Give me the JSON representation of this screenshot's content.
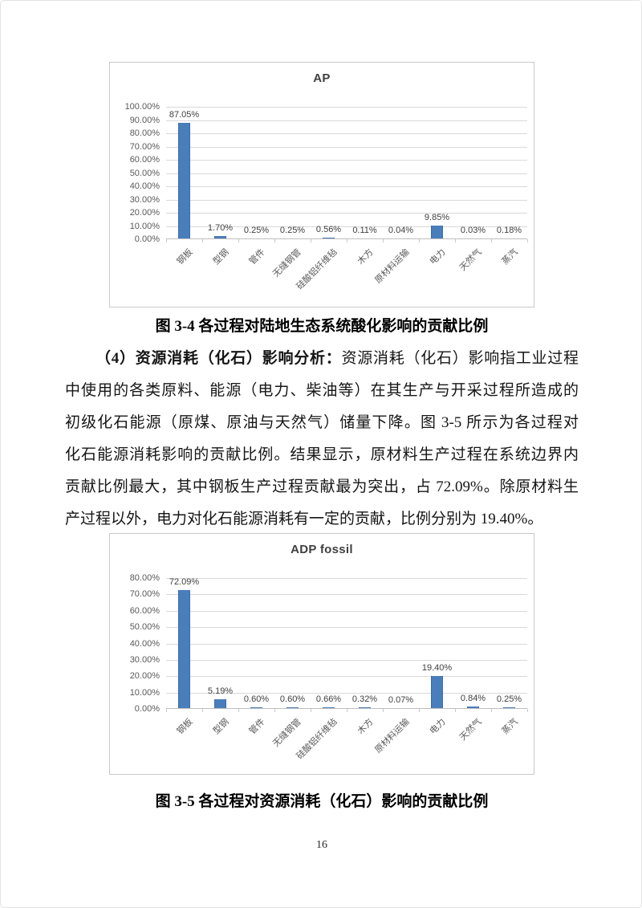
{
  "page": {
    "number": "16"
  },
  "captions": {
    "figure1": "图 3-4 各过程对陆地生态系统酸化影响的贡献比例",
    "figure2": "图 3-5 各过程对资源消耗（化石）影响的贡献比例"
  },
  "paragraph": {
    "bold_lead": "（4）资源消耗（化石）影响分析：",
    "line1_rest": "资源消耗（化石）影响指工业过程",
    "lines": [
      "中使用的各类原料、能源（电力、柴油等）在其生产与开采过程所造成的",
      "初级化石能源（原煤、原油与天然气）储量下降。图 3-5 所示为各过程对",
      "化石能源消耗影响的贡献比例。结果显示，原材料生产过程在系统边界内",
      "贡献比例最大，其中钢板生产过程贡献最为突出，占 72.09%。除原材料生",
      "产过程以外，电力对化石能源消耗有一定的贡献，比例分别为 19.40%。"
    ]
  },
  "colors": {
    "bar": "#4A7EBB",
    "gridline": "#d9d9d9",
    "axis_text": "#595959",
    "chart_border": "#c9c9c9"
  },
  "chart_data": [
    {
      "type": "bar",
      "title": "AP",
      "categories": [
        "钢板",
        "型钢",
        "管件",
        "无缝钢管",
        "硅酸铝纤维毡",
        "木方",
        "原材料运输",
        "电力",
        "天然气",
        "蒸汽"
      ],
      "values": [
        87.05,
        1.7,
        0.25,
        0.25,
        0.56,
        0.11,
        0.04,
        9.85,
        0.03,
        0.18
      ],
      "data_labels": [
        "87.05%",
        "1.70%",
        "0.25%",
        "0.25%",
        "0.56%",
        "0.11%",
        "0.04%",
        "9.85%",
        "0.03%",
        "0.18%"
      ],
      "ytick_labels": [
        "100.00%",
        "90.00%",
        "80.00%",
        "70.00%",
        "60.00%",
        "50.00%",
        "40.00%",
        "30.00%",
        "20.00%",
        "10.00%",
        "0.00%"
      ],
      "xlabel": "",
      "ylabel": "",
      "ylim": [
        0,
        100
      ],
      "ytick_step": 10,
      "grid": true,
      "legend": false
    },
    {
      "type": "bar",
      "title": "ADP fossil",
      "categories": [
        "钢板",
        "型钢",
        "管件",
        "无缝钢管",
        "硅酸铝纤维毡",
        "木方",
        "原材料运输",
        "电力",
        "天然气",
        "蒸汽"
      ],
      "values": [
        72.09,
        5.19,
        0.6,
        0.6,
        0.66,
        0.32,
        0.07,
        19.4,
        0.84,
        0.25
      ],
      "data_labels": [
        "72.09%",
        "5.19%",
        "0.60%",
        "0.60%",
        "0.66%",
        "0.32%",
        "0.07%",
        "19.40%",
        "0.84%",
        "0.25%"
      ],
      "ytick_labels": [
        "80.00%",
        "70.00%",
        "60.00%",
        "50.00%",
        "40.00%",
        "30.00%",
        "20.00%",
        "10.00%",
        "0.00%"
      ],
      "xlabel": "",
      "ylabel": "",
      "ylim": [
        0,
        80
      ],
      "ytick_step": 10,
      "grid": true,
      "legend": false
    }
  ]
}
